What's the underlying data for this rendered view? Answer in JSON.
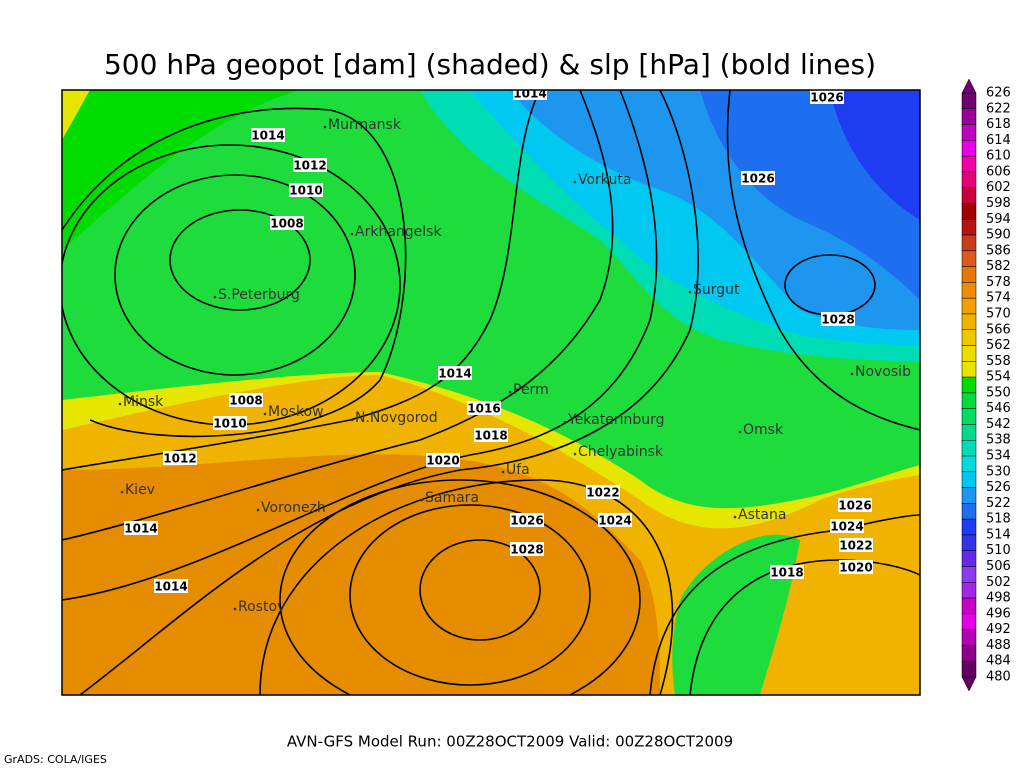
{
  "title": "500 hPa geopot [dam] (shaded) & slp [hPa] (bold lines)",
  "footer": "AVN-GFS Model Run: 00Z28OCT2009 Valid: 00Z28OCT2009",
  "credit": "GrADS: COLA/IGES",
  "cities": [
    "Murmansk",
    "Arkhangelsk",
    "S.Peterburg",
    "Vorkuta",
    "Surgut",
    "Perm",
    "Minsk",
    "Moskow",
    "N.Novgorod",
    "Yekaterinburg",
    "Omsk",
    "Novosib",
    "Chelyabinsk",
    "Kiev",
    "Ufa",
    "Samara",
    "Voronezh",
    "Astana",
    "Rostov"
  ],
  "isobar_labels": [
    "1014",
    "1026",
    "1014",
    "1012",
    "1010",
    "1008",
    "1026",
    "1028",
    "1014",
    "1008",
    "1010",
    "1016",
    "1018",
    "1012",
    "1020",
    "1022",
    "1024",
    "1026",
    "1028",
    "1026",
    "1024",
    "1022",
    "1020",
    "1018",
    "1014",
    "1014"
  ],
  "colorbar": {
    "labels": [
      626,
      622,
      618,
      614,
      610,
      606,
      602,
      598,
      594,
      590,
      586,
      582,
      578,
      574,
      570,
      566,
      562,
      558,
      554,
      550,
      546,
      542,
      538,
      534,
      530,
      526,
      522,
      518,
      514,
      510,
      506,
      502,
      498,
      496,
      492,
      488,
      484,
      480
    ],
    "colors": [
      "#6e0070",
      "#9a009a",
      "#c000c0",
      "#e600e6",
      "#f000a8",
      "#e60078",
      "#c8003c",
      "#a00000",
      "#b41414",
      "#c83c1e",
      "#dc5a1e",
      "#e67800",
      "#f08c00",
      "#f0a000",
      "#f0b400",
      "#f0c800",
      "#f0dc00",
      "#e6e600",
      "#00dc00",
      "#00dc3c",
      "#00dc64",
      "#00dc8c",
      "#00dcb4",
      "#00dcdc",
      "#00c8f0",
      "#1e96f0",
      "#1e6ef0",
      "#1e3cf0",
      "#3232e6",
      "#6428e6",
      "#8c3cf0",
      "#a028e6",
      "#c800c8",
      "#e600e6",
      "#b400b4",
      "#8c008c",
      "#640064"
    ]
  }
}
